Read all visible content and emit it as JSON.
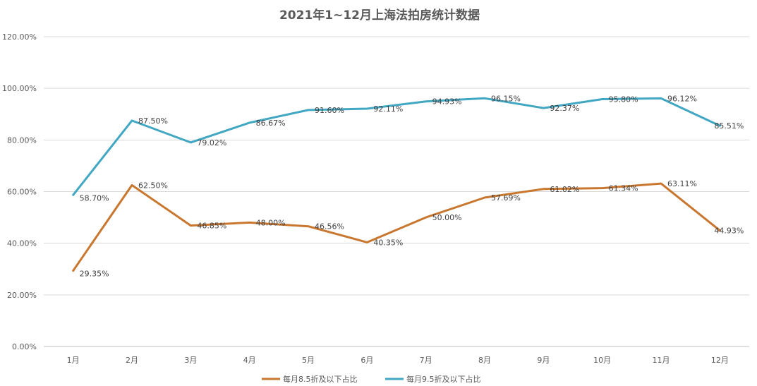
{
  "chart_data": {
    "type": "line",
    "title": "2021年1~12月上海法拍房统计数据",
    "categories": [
      "1月",
      "2月",
      "3月",
      "4月",
      "5月",
      "6月",
      "7月",
      "8月",
      "9月",
      "10月",
      "11月",
      "12月"
    ],
    "y_ticks": [
      "0.00%",
      "20.00%",
      "40.00%",
      "60.00%",
      "80.00%",
      "100.00%",
      "120.00%"
    ],
    "ylim": [
      0,
      120
    ],
    "grid": true,
    "legend_position": "bottom",
    "series": [
      {
        "name": "每月8.5折及以下占比",
        "color": "#c9772f",
        "values": [
          29.35,
          62.5,
          46.85,
          48.0,
          46.56,
          40.35,
          50.0,
          57.69,
          61.02,
          61.34,
          63.11,
          44.93
        ],
        "labels": [
          "29.35%",
          "62.50%",
          "46.85%",
          "48.00%",
          "46.56%",
          "40.35%",
          "50.00%",
          "57.69%",
          "61.02%",
          "61.34%",
          "63.11%",
          "44.93%"
        ]
      },
      {
        "name": "每月9.5折及以下占比",
        "color": "#42a7c3",
        "values": [
          58.7,
          87.5,
          79.02,
          86.67,
          91.6,
          92.11,
          94.93,
          96.15,
          92.37,
          95.8,
          96.12,
          85.51
        ],
        "labels": [
          "58.70%",
          "87.50%",
          "79.02%",
          "86.67%",
          "91.60%",
          "92.11%",
          "94.93%",
          "96.15%",
          "92.37%",
          "95.80%",
          "96.12%",
          "85.51%"
        ]
      }
    ]
  }
}
